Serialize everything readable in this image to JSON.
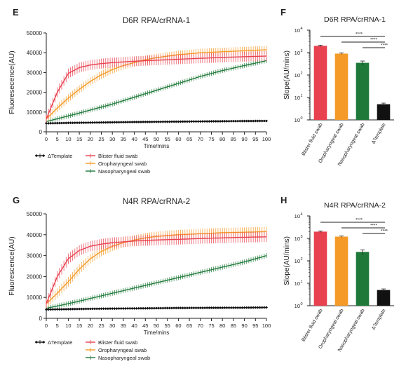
{
  "chart_data": [
    {
      "panel": "E",
      "type": "line",
      "title": "D6R RPA/crRNA-1",
      "xlabel": "Time/mins",
      "ylabel": "Fluoresecence(AU)",
      "xlim": [
        0,
        100
      ],
      "ylim": [
        0,
        50000
      ],
      "xticks": [
        "0",
        "5",
        "10",
        "15",
        "20",
        "25",
        "30",
        "35",
        "40",
        "45",
        "50",
        "55",
        "60",
        "65",
        "70",
        "75",
        "80",
        "85",
        "90",
        "95",
        "100"
      ],
      "yticks": [
        "0",
        "10000",
        "20000",
        "30000",
        "40000",
        "50000"
      ],
      "legend_position": "bottom-left",
      "series": [
        {
          "name": "ΔTemplate",
          "color": "#111111",
          "marker": "diamond",
          "x": [
            0,
            10,
            20,
            30,
            40,
            50,
            60,
            70,
            80,
            90,
            100
          ],
          "y": [
            4300,
            4500,
            4650,
            4800,
            4950,
            5050,
            5150,
            5250,
            5350,
            5450,
            5500
          ],
          "err": 250
        },
        {
          "name": "Blister fluid swab",
          "color": "#e8414f",
          "marker": "none",
          "x": [
            0,
            5,
            10,
            15,
            20,
            25,
            30,
            40,
            50,
            60,
            70,
            80,
            90,
            100
          ],
          "y": [
            6500,
            20000,
            29500,
            32500,
            33800,
            34500,
            35000,
            35700,
            36200,
            36700,
            37200,
            37600,
            38000,
            38300
          ],
          "err": 2500
        },
        {
          "name": "Oropharyngeal swab",
          "color": "#f59a28",
          "marker": "none",
          "x": [
            0,
            5,
            10,
            15,
            20,
            25,
            30,
            35,
            40,
            45,
            50,
            60,
            70,
            80,
            90,
            100
          ],
          "y": [
            6500,
            12000,
            17000,
            21500,
            25500,
            28800,
            31500,
            33500,
            35000,
            36500,
            37500,
            39000,
            40000,
            40500,
            41000,
            41500
          ],
          "err": 2000
        },
        {
          "name": "Nasopharyngeal swab",
          "color": "#1f7a3a",
          "marker": "none",
          "x": [
            0,
            10,
            20,
            30,
            40,
            50,
            60,
            70,
            80,
            90,
            100
          ],
          "y": [
            5200,
            8000,
            11000,
            14000,
            17500,
            21000,
            24500,
            28000,
            31000,
            33500,
            36000
          ],
          "err": 1200
        }
      ]
    },
    {
      "panel": "F",
      "type": "bar",
      "title": "D6R RPA/crRNA-1",
      "ylabel": "Slope(AU/mins)",
      "yscale": "log",
      "ylim": [
        1,
        10000
      ],
      "ytick_exponents": [
        "0",
        "1",
        "2",
        "3",
        "4"
      ],
      "categories": [
        "Blister fluid swab",
        "Oropharyngeal swab",
        "Nasopharyngeal swab",
        "ΔTemplate"
      ],
      "values": [
        2000,
        900,
        350,
        5
      ],
      "err": [
        150,
        60,
        70,
        0.6
      ],
      "colors": [
        "#e8414f",
        "#f59a28",
        "#1f7a3a",
        "#111111"
      ],
      "significance": "****",
      "comparisons": [
        [
          0,
          3
        ],
        [
          1,
          3
        ],
        [
          2,
          3
        ]
      ]
    },
    {
      "panel": "G",
      "type": "line",
      "title": "N4R RPA/crRNA-2",
      "xlabel": "Time/mins",
      "ylabel": "Fluorescence(AU)",
      "xlim": [
        0,
        100
      ],
      "ylim": [
        0,
        50000
      ],
      "xticks": [
        "0",
        "5",
        "10",
        "15",
        "20",
        "25",
        "30",
        "35",
        "40",
        "45",
        "50",
        "55",
        "60",
        "65",
        "70",
        "75",
        "80",
        "85",
        "90",
        "95",
        "100"
      ],
      "yticks": [
        "0",
        "10000",
        "20000",
        "30000",
        "40000",
        "50000"
      ],
      "legend_position": "bottom-left",
      "series": [
        {
          "name": "ΔTemplate",
          "color": "#111111",
          "marker": "diamond",
          "x": [
            0,
            10,
            20,
            30,
            40,
            50,
            60,
            70,
            80,
            90,
            100
          ],
          "y": [
            4200,
            4400,
            4550,
            4650,
            4750,
            4850,
            4950,
            5000,
            5050,
            5100,
            5200
          ],
          "err": 250
        },
        {
          "name": "Blister fluid swab",
          "color": "#e8414f",
          "marker": "none",
          "x": [
            0,
            5,
            10,
            15,
            20,
            25,
            30,
            40,
            50,
            60,
            70,
            80,
            90,
            100
          ],
          "y": [
            7000,
            20000,
            28500,
            32500,
            34500,
            35500,
            36200,
            37000,
            37500,
            37800,
            38200,
            38500,
            38800,
            39000
          ],
          "err": 2500
        },
        {
          "name": "Oropharyngeal swab",
          "color": "#f59a28",
          "marker": "none",
          "x": [
            0,
            5,
            10,
            15,
            20,
            25,
            30,
            35,
            40,
            45,
            50,
            60,
            70,
            80,
            90,
            100
          ],
          "y": [
            7000,
            12000,
            17500,
            23500,
            28500,
            32000,
            34500,
            36200,
            37500,
            38500,
            39200,
            40000,
            40500,
            41000,
            41200,
            41500
          ],
          "err": 2300
        },
        {
          "name": "Nasopharyngeal swab",
          "color": "#1f7a3a",
          "marker": "none",
          "x": [
            0,
            10,
            20,
            30,
            40,
            50,
            60,
            70,
            80,
            90,
            100
          ],
          "y": [
            4800,
            7000,
            9500,
            12000,
            14500,
            17000,
            19500,
            22000,
            24500,
            27000,
            30000
          ],
          "err": 1200
        }
      ]
    },
    {
      "panel": "H",
      "type": "bar",
      "title": "N4R RPA/crRNA-2",
      "ylabel": "Slope(AU/mins)",
      "yscale": "log",
      "ylim": [
        1,
        10000
      ],
      "ytick_exponents": [
        "0",
        "1",
        "2",
        "3",
        "4"
      ],
      "categories": [
        "Blister fluid swab",
        "Oropharyngeal swab",
        "Nasopharyngeal swab",
        "ΔTemplate"
      ],
      "values": [
        2000,
        1200,
        250,
        5
      ],
      "err": [
        150,
        80,
        60,
        0.6
      ],
      "colors": [
        "#e8414f",
        "#f59a28",
        "#1f7a3a",
        "#111111"
      ],
      "significance": "****",
      "comparisons": [
        [
          0,
          3
        ],
        [
          1,
          3
        ],
        [
          2,
          3
        ]
      ]
    }
  ]
}
